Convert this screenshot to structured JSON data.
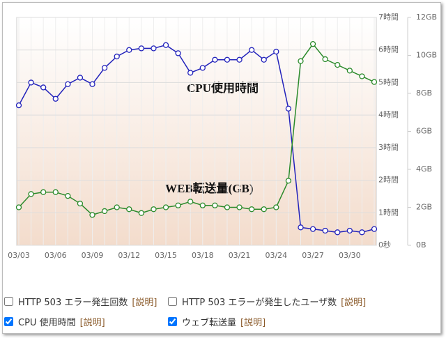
{
  "chart_data": {
    "type": "line",
    "categories": [
      "03/03",
      null,
      null,
      "03/06",
      null,
      null,
      "03/09",
      null,
      null,
      "03/12",
      null,
      null,
      "03/15",
      null,
      null,
      "03/18",
      null,
      null,
      "03/21",
      null,
      null,
      "03/24",
      null,
      null,
      "03/27",
      null,
      null,
      "03/30",
      null,
      null
    ],
    "series": [
      {
        "name": "CPU使用時間",
        "color": "#2222bb",
        "axis": "y",
        "values": [
          4.3,
          5.0,
          4.85,
          4.5,
          4.95,
          5.15,
          4.95,
          5.45,
          5.8,
          6.0,
          6.05,
          6.05,
          6.15,
          5.9,
          5.3,
          5.45,
          5.7,
          5.7,
          5.7,
          6.0,
          5.7,
          5.95,
          4.2,
          0.55,
          0.5,
          0.45,
          0.4,
          0.45,
          0.4,
          0.5
        ]
      },
      {
        "name": "WEB転送量(GB)",
        "color": "#2a8a2a",
        "axis": "y2",
        "values": [
          2.0,
          2.7,
          2.8,
          2.8,
          2.6,
          2.2,
          1.6,
          1.8,
          2.0,
          1.9,
          1.7,
          1.9,
          2.0,
          2.1,
          2.3,
          2.1,
          2.1,
          2.0,
          2.0,
          1.9,
          1.9,
          2.0,
          3.4,
          9.7,
          10.6,
          9.8,
          9.5,
          9.2,
          8.9,
          8.6
        ]
      }
    ],
    "ylim": [
      0,
      7
    ],
    "yticks": [
      {
        "value": 0,
        "label": "0秒"
      },
      {
        "value": 1,
        "label": "1時間"
      },
      {
        "value": 2,
        "label": "2時間"
      },
      {
        "value": 3,
        "label": "3時間"
      },
      {
        "value": 4,
        "label": "4時間"
      },
      {
        "value": 5,
        "label": "5時間"
      },
      {
        "value": 6,
        "label": "6時間"
      },
      {
        "value": 7,
        "label": "7時間"
      }
    ],
    "y2lim": [
      0,
      12
    ],
    "y2ticks": [
      {
        "value": 0,
        "label": "0B"
      },
      {
        "value": 2,
        "label": "2GB"
      },
      {
        "value": 4,
        "label": "4GB"
      },
      {
        "value": 6,
        "label": "6GB"
      },
      {
        "value": 8,
        "label": "8GB"
      },
      {
        "value": 10,
        "label": "10GB"
      },
      {
        "value": 12,
        "label": "12GB"
      }
    ],
    "grid": true
  },
  "options": [
    {
      "label": "HTTP 503 エラー発生回数",
      "help": "[説明]",
      "checked": false
    },
    {
      "label": "HTTP 503 エラーが発生したユーザ数",
      "help": "[説明]",
      "checked": false
    },
    {
      "label": "CPU 使用時間",
      "help": "[説明]",
      "checked": true
    },
    {
      "label": "ウェブ転送量",
      "help": "[説明]",
      "checked": true
    }
  ]
}
